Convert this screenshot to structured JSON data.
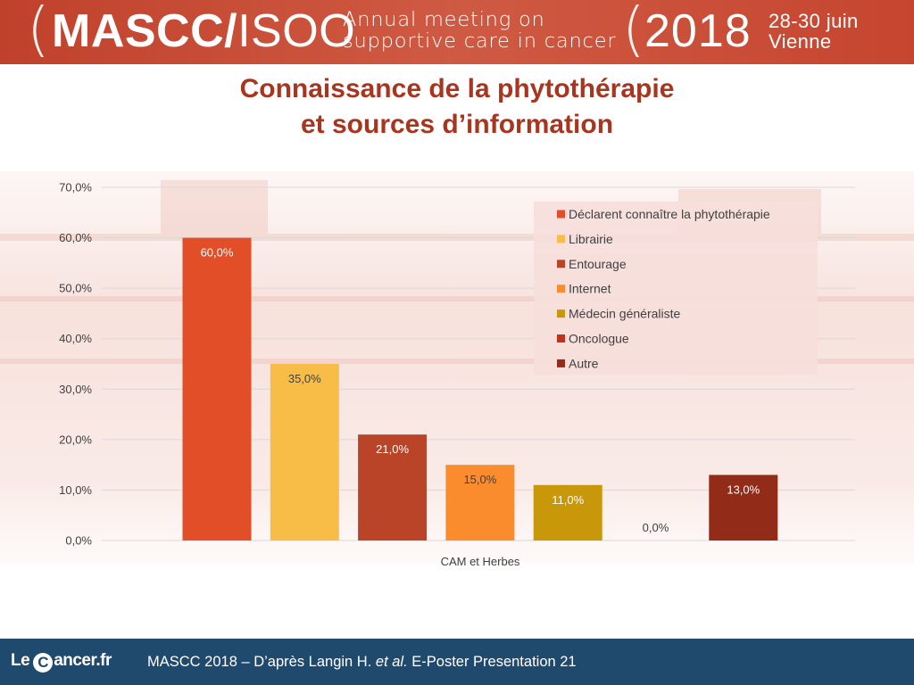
{
  "header": {
    "brand_bold": "MASCC/",
    "brand_light": "ISOO",
    "meeting_line1": "Annual meeting on",
    "meeting_line2": "supportive care in cancer",
    "year": "2018",
    "dates_line1": "28-30 juin",
    "dates_line2": "Vienne",
    "paren_left": "(",
    "paren_right": "("
  },
  "title": {
    "line1": "Connaissance de la phytothérapie",
    "line2": "et sources d’information"
  },
  "chart_data": {
    "type": "bar",
    "title": "Connaissance de la phytothérapie et sources d’information",
    "xlabel": "CAM et Herbes",
    "ylabel": "",
    "ylim": [
      0,
      70
    ],
    "yticks": [
      "0,0%",
      "10,0%",
      "20,0%",
      "30,0%",
      "40,0%",
      "50,0%",
      "60,0%",
      "70,0%"
    ],
    "ytick_values": [
      0,
      10,
      20,
      30,
      40,
      50,
      60,
      70
    ],
    "categories": [
      "CAM et Herbes"
    ],
    "grid": true,
    "legend_position": "top-right",
    "series": [
      {
        "name": "Déclarent connaître la phytothérapie",
        "values": [
          60.0
        ],
        "label": "60,0%",
        "color": "#e14e27",
        "label_color": "#ffffff"
      },
      {
        "name": "Librairie",
        "values": [
          35.0
        ],
        "label": "35,0%",
        "color": "#f8bd47",
        "label_color": "#404040"
      },
      {
        "name": "Entourage",
        "values": [
          21.0
        ],
        "label": "21,0%",
        "color": "#b94428",
        "label_color": "#ffffff"
      },
      {
        "name": "Internet",
        "values": [
          15.0
        ],
        "label": "15,0%",
        "color": "#fa8c2e",
        "label_color": "#404040"
      },
      {
        "name": "Médecin généraliste",
        "values": [
          11.0
        ],
        "label": "11,0%",
        "color": "#c9970a",
        "label_color": "#ffffff"
      },
      {
        "name": "Oncologue",
        "values": [
          0.0
        ],
        "label": "0,0%",
        "color": "#c0321c",
        "label_color": "#404040"
      },
      {
        "name": "Autre",
        "values": [
          13.0
        ],
        "label": "13,0%",
        "color": "#922b17",
        "label_color": "#ffffff"
      }
    ]
  },
  "footer": {
    "logo_le": "Le",
    "logo_c": "C",
    "logo_rest": "ancer.fr",
    "citation_pre": "MASCC 2018 – D’après Langin H. ",
    "citation_italic": "et al.",
    "citation_post": " E-Poster Presentation 21"
  },
  "colors": {
    "header_bg": "#c9503a",
    "title": "#a73520",
    "footer_bg": "#1f4a6e"
  }
}
